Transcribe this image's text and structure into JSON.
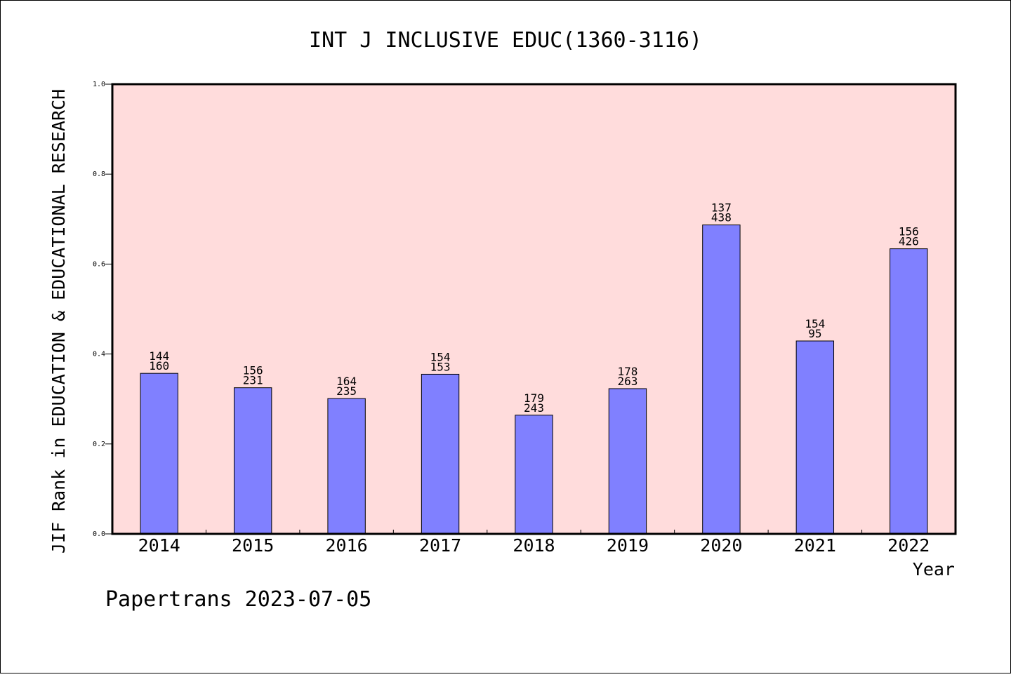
{
  "chart_data": {
    "type": "bar",
    "title": "INT J INCLUSIVE EDUC(1360-3116)",
    "xlabel": "Year",
    "ylabel": "JIF Rank in EDUCATION & EDUCATIONAL RESEARCH",
    "ylim": [
      0,
      1.0
    ],
    "yticks": [
      "0.0",
      "0.2",
      "0.4",
      "0.6",
      "0.8",
      "1.0"
    ],
    "categories": [
      "2014",
      "2015",
      "2016",
      "2017",
      "2018",
      "2019",
      "2020",
      "2021",
      "2022"
    ],
    "values": [
      0.357,
      0.325,
      0.301,
      0.355,
      0.264,
      0.323,
      0.687,
      0.429,
      0.634
    ],
    "rank": [
      "144",
      "156",
      "164",
      "154",
      "179",
      "178",
      "137",
      "154",
      "156"
    ],
    "total": [
      "160",
      "231",
      "235",
      "153",
      "243",
      "263",
      "438",
      "95",
      "426"
    ],
    "colors": {
      "bar": "#8080ff",
      "plot_background": "#ffdcdc"
    },
    "grid": false
  },
  "footer": {
    "text": "Papertrans 2023-07-05"
  }
}
